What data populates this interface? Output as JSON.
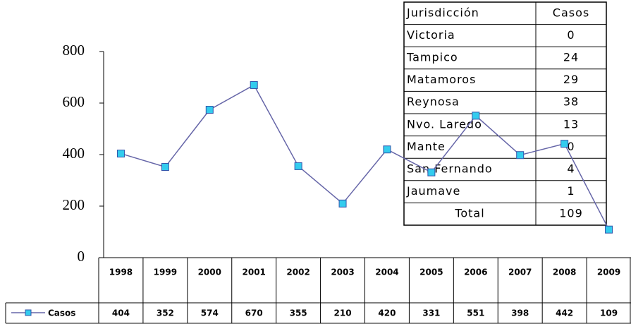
{
  "chart_data": {
    "type": "line",
    "categories": [
      "1998",
      "1999",
      "2000",
      "2001",
      "2002",
      "2003",
      "2004",
      "2005",
      "2006",
      "2007",
      "2008",
      "2009"
    ],
    "series": [
      {
        "name": "Casos",
        "color": "#6666a8",
        "marker_color": "#33ccee",
        "values": [
          404,
          352,
          574,
          670,
          355,
          210,
          420,
          331,
          551,
          398,
          442,
          109
        ]
      }
    ],
    "ylim": [
      0,
      800
    ],
    "yticks": [
      0,
      200,
      400,
      600,
      800
    ]
  },
  "table": {
    "header": [
      "Jurisdicción",
      "Casos"
    ],
    "rows": [
      [
        "Victoria",
        0
      ],
      [
        "Tampico",
        24
      ],
      [
        "Matamoros",
        29
      ],
      [
        "Reynosa",
        38
      ],
      [
        "Nvo. Laredo",
        13
      ],
      [
        "Mante",
        0
      ],
      [
        "San Fernando",
        4
      ],
      [
        "Jaumave",
        1
      ]
    ],
    "total": [
      "Total",
      109
    ]
  }
}
